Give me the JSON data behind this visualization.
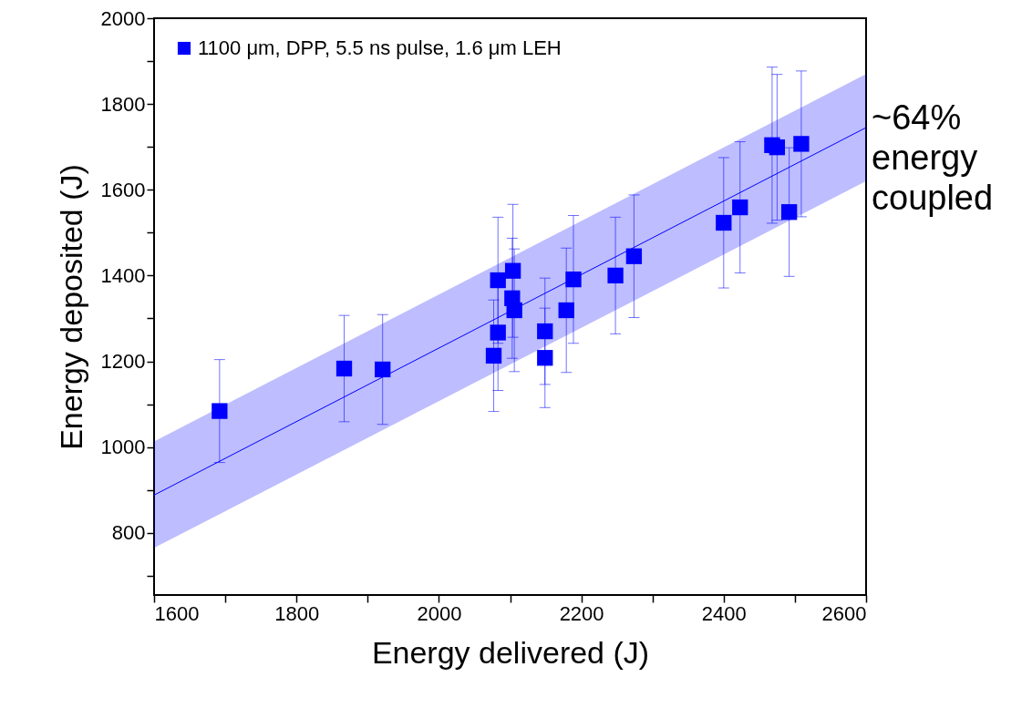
{
  "chart_data": {
    "type": "scatter",
    "xlabel": "Energy delivered (J)",
    "ylabel": "Energy deposited (J)",
    "annotations": [
      "~64% energy coupled"
    ],
    "xlim": [
      1600,
      2600
    ],
    "xticks": [
      1600,
      {
        "value": 1700,
        "label": null
      },
      1800,
      {
        "value": 1900,
        "label": null
      },
      2000,
      {
        "value": 2100,
        "label": null
      },
      2200,
      {
        "value": 2300,
        "label": null
      },
      2400,
      {
        "value": 2500,
        "label": null
      },
      2600
    ],
    "ylim": [
      655,
      2000
    ],
    "yticks": [
      {
        "value": 700,
        "label": null
      },
      800,
      {
        "value": 900,
        "label": null
      },
      1000,
      {
        "value": 1100,
        "label": null
      },
      1200,
      {
        "value": 1300,
        "label": null
      },
      1400,
      {
        "value": 1500,
        "label": null
      },
      1600,
      {
        "value": 1700,
        "label": null
      },
      1800,
      {
        "value": 1900,
        "label": null
      },
      2000
    ],
    "legend": "top left",
    "series": [
      {
        "name": "1100 μm, DPP, 5.5 ns pulse, 1.6 μm LEH",
        "marker": "square",
        "color": "#0000ff",
        "x": [
          1692,
          1867,
          1921,
          2077,
          2083,
          2083,
          2104,
          2103,
          2106,
          2149,
          2149,
          2179,
          2189,
          2248,
          2274,
          2400,
          2423,
          2468,
          2475,
          2492,
          2509
        ],
        "values": [
          1084,
          1183,
          1181,
          1213,
          1267,
          1389,
          1411,
          1347,
          1319,
          1270,
          1208,
          1319,
          1391,
          1400,
          1445,
          1523,
          1559,
          1704,
          1699,
          1548,
          1707
        ],
        "errors": [
          120,
          124,
          128,
          130,
          135,
          147,
          155,
          140,
          143,
          124,
          116,
          145,
          149,
          136,
          143,
          152,
          153,
          182,
          170,
          150,
          170
        ]
      },
      {
        "type": "line",
        "color": "#0000ff",
        "x": [
          1600,
          2600
        ],
        "values": [
          888,
          1745
        ],
        "lower": [
          765,
          1620
        ],
        "upper": [
          1013,
          1870
        ]
      }
    ]
  }
}
